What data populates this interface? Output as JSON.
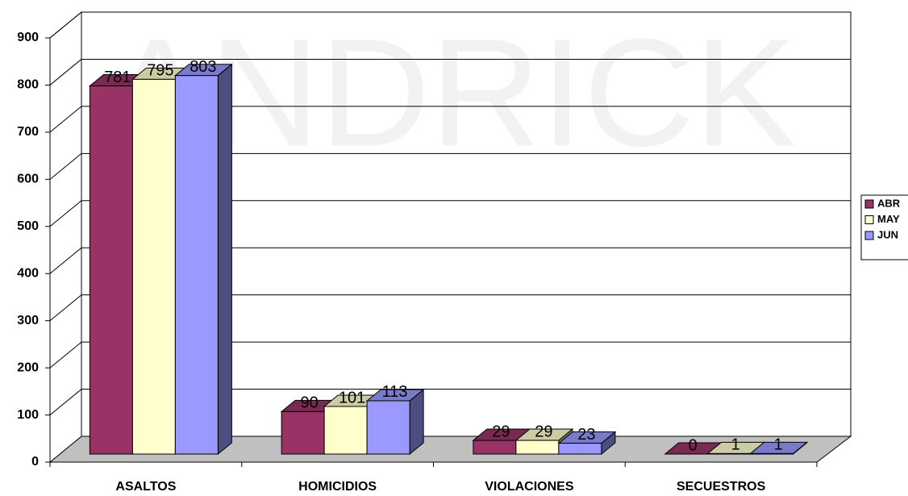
{
  "chart_data": {
    "type": "bar3d",
    "watermark": "ANDRICK",
    "categories": [
      "ASALTOS",
      "HOMICIDIOS",
      "VIOLACIONES",
      "SECUESTROS"
    ],
    "series": [
      {
        "name": "ABR",
        "color": "#993366",
        "values": [
          781,
          90,
          29,
          0
        ]
      },
      {
        "name": "MAY",
        "color": "#ffffcc",
        "values": [
          795,
          101,
          29,
          1
        ]
      },
      {
        "name": "JUN",
        "color": "#9999ff",
        "values": [
          803,
          113,
          23,
          1
        ]
      }
    ],
    "ylim": [
      0,
      900
    ],
    "yticks": [
      0,
      100,
      200,
      300,
      400,
      500,
      600,
      700,
      800,
      900
    ],
    "grid": true,
    "legend": "right"
  }
}
